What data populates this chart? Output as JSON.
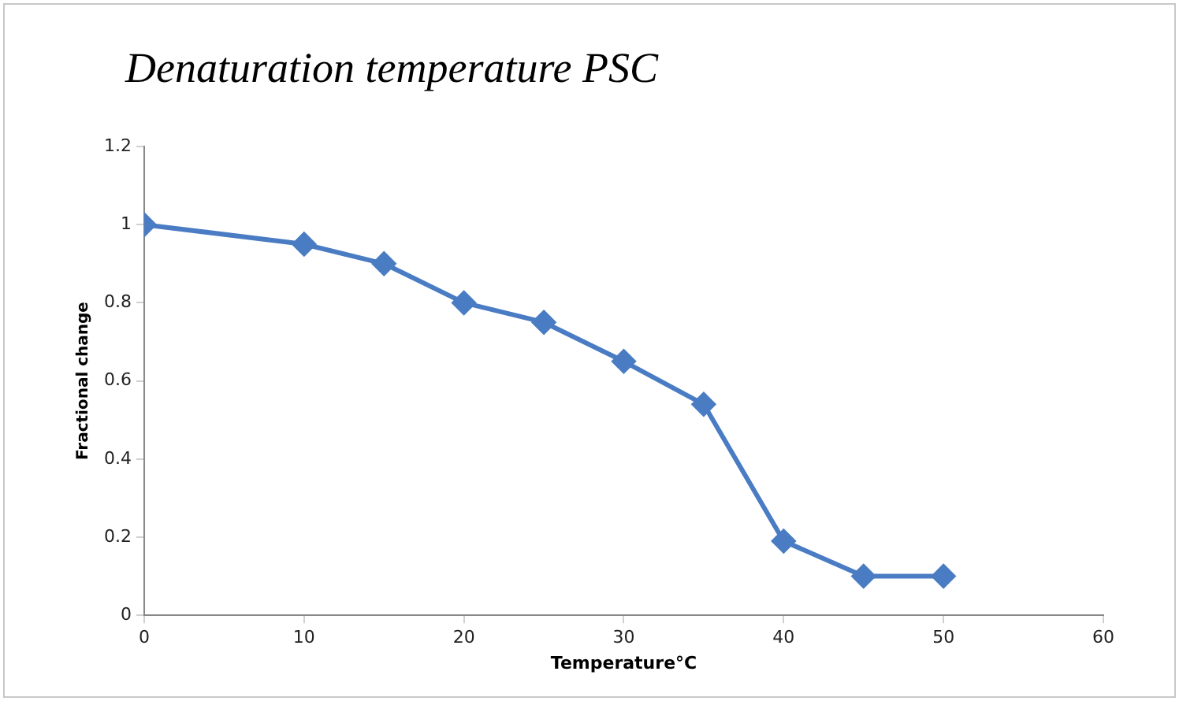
{
  "chart_data": {
    "type": "line",
    "title": "Denaturation temperature PSC",
    "xlabel": "Temperature°C",
    "ylabel": "Fractional change",
    "x": [
      0,
      10,
      15,
      20,
      25,
      30,
      35,
      40,
      45,
      50
    ],
    "series": [
      {
        "color": "#4a7cc4",
        "values": [
          1,
          0.95,
          0.9,
          0.8,
          0.75,
          0.65,
          0.54,
          0.19,
          0.1,
          0.1
        ]
      }
    ],
    "xlim": [
      0,
      60
    ],
    "xticks": [
      0,
      10,
      20,
      30,
      40,
      50,
      60
    ],
    "ylim": [
      0,
      1.2
    ],
    "yticks": [
      0,
      0.2,
      0.4,
      0.6,
      0.8,
      1,
      1.2
    ],
    "grid": false,
    "legend": false,
    "marker": "diamond",
    "line_style": "solid"
  }
}
